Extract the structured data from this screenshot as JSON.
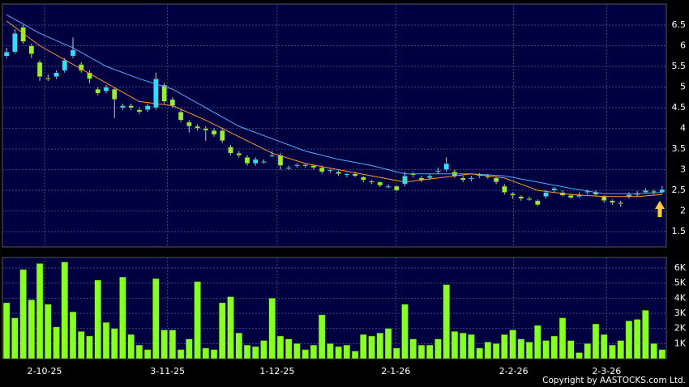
{
  "chart_data": [
    {
      "type": "candlestick",
      "open": [
        5.75,
        5.85,
        6.45,
        6.0,
        5.6,
        5.22,
        5.25,
        5.4,
        5.75,
        5.55,
        5.35,
        4.95,
        4.9,
        4.95,
        4.5,
        4.55,
        4.45,
        4.45,
        4.5,
        5.05,
        4.7,
        4.4,
        4.15,
        4.05,
        4.0,
        3.95,
        3.95,
        3.55,
        3.4,
        3.3,
        3.15,
        3.2,
        3.35,
        3.35,
        3.05,
        3.1,
        3.12,
        3.1,
        3.05,
        2.98,
        2.95,
        2.88,
        2.9,
        2.82,
        2.72,
        2.7,
        2.6,
        2.6,
        2.65,
        2.9,
        2.8,
        2.8,
        2.95,
        3.0,
        2.95,
        2.8,
        2.78,
        2.85,
        2.85,
        2.8,
        2.6,
        2.42,
        2.35,
        2.3,
        2.25,
        2.35,
        2.5,
        2.45,
        2.38,
        2.35,
        2.45,
        2.45,
        2.35,
        2.25,
        2.2,
        2.35,
        2.4,
        2.45,
        2.48,
        2.45
      ],
      "high": [
        5.95,
        6.4,
        6.5,
        6.05,
        5.65,
        5.3,
        5.4,
        5.7,
        6.2,
        5.6,
        5.4,
        5.0,
        5.05,
        5.0,
        4.6,
        4.6,
        4.5,
        4.6,
        5.35,
        5.1,
        4.75,
        4.45,
        4.2,
        4.1,
        4.05,
        4.0,
        4.0,
        3.6,
        3.45,
        3.35,
        3.3,
        3.25,
        3.45,
        3.4,
        3.1,
        3.15,
        3.15,
        3.12,
        3.1,
        3.02,
        2.98,
        2.92,
        2.95,
        2.85,
        2.75,
        2.72,
        2.65,
        2.62,
        2.95,
        2.95,
        2.85,
        2.9,
        3.05,
        3.3,
        3.0,
        2.85,
        2.85,
        2.92,
        2.9,
        2.82,
        2.65,
        2.45,
        2.38,
        2.35,
        2.28,
        2.5,
        2.58,
        2.5,
        2.42,
        2.45,
        2.52,
        2.5,
        2.38,
        2.28,
        2.25,
        2.45,
        2.48,
        2.55,
        2.52,
        2.6
      ],
      "low": [
        5.7,
        5.8,
        6.05,
        5.7,
        5.15,
        5.15,
        5.2,
        5.35,
        5.7,
        5.35,
        5.1,
        4.8,
        4.85,
        4.25,
        4.45,
        4.45,
        4.35,
        4.4,
        4.45,
        4.6,
        4.5,
        4.15,
        3.9,
        3.95,
        3.7,
        3.8,
        3.65,
        3.35,
        3.3,
        3.1,
        3.1,
        3.15,
        3.3,
        3.0,
        3.0,
        3.05,
        3.05,
        3.0,
        2.9,
        2.92,
        2.85,
        2.82,
        2.82,
        2.7,
        2.65,
        2.58,
        2.55,
        2.48,
        2.6,
        2.82,
        2.7,
        2.75,
        2.9,
        2.95,
        2.8,
        2.7,
        2.72,
        2.8,
        2.78,
        2.65,
        2.4,
        2.3,
        2.25,
        2.25,
        2.12,
        2.3,
        2.45,
        2.35,
        2.3,
        2.32,
        2.4,
        2.35,
        2.2,
        2.15,
        2.1,
        2.3,
        2.35,
        2.42,
        2.4,
        2.42
      ],
      "close": [
        5.85,
        6.3,
        6.1,
        5.8,
        5.25,
        5.2,
        5.35,
        5.65,
        5.9,
        5.4,
        5.2,
        4.85,
        5.0,
        4.7,
        4.55,
        4.5,
        4.4,
        4.55,
        5.2,
        4.65,
        4.55,
        4.2,
        4.05,
        4.0,
        3.95,
        3.85,
        3.7,
        3.4,
        3.35,
        3.15,
        3.25,
        3.2,
        3.35,
        3.1,
        3.05,
        3.12,
        3.1,
        3.05,
        2.95,
        3.0,
        2.9,
        2.9,
        2.85,
        2.75,
        2.7,
        2.62,
        2.6,
        2.5,
        2.85,
        2.88,
        2.75,
        2.85,
        2.98,
        3.15,
        2.85,
        2.75,
        2.8,
        2.88,
        2.82,
        2.7,
        2.45,
        2.38,
        2.3,
        2.28,
        2.15,
        2.45,
        2.55,
        2.38,
        2.32,
        2.4,
        2.48,
        2.4,
        2.25,
        2.2,
        2.18,
        2.4,
        2.42,
        2.5,
        2.45,
        2.52
      ],
      "up_color": "#33ddff",
      "down_color": "#99ee33",
      "lines": [
        {
          "color": "#55aaff",
          "x": [
            0,
            4,
            8,
            12,
            16,
            20,
            24,
            28,
            32,
            36,
            40,
            44,
            48,
            52,
            56,
            60,
            64,
            68,
            72,
            76,
            79
          ],
          "values": [
            6.75,
            6.3,
            5.95,
            5.5,
            5.2,
            4.95,
            4.5,
            4.05,
            3.75,
            3.45,
            3.25,
            3.1,
            2.9,
            2.9,
            2.9,
            2.85,
            2.7,
            2.55,
            2.42,
            2.42,
            2.45
          ]
        },
        {
          "color": "#ff9933",
          "x": [
            0,
            4,
            8,
            12,
            16,
            20,
            24,
            28,
            32,
            36,
            40,
            44,
            48,
            52,
            56,
            60,
            64,
            68,
            72,
            76,
            79
          ],
          "values": [
            6.6,
            6.0,
            5.55,
            5.1,
            4.65,
            4.55,
            4.2,
            3.8,
            3.4,
            3.15,
            3.0,
            2.85,
            2.7,
            2.8,
            2.9,
            2.8,
            2.5,
            2.4,
            2.35,
            2.35,
            2.4
          ]
        }
      ],
      "xlim": [
        -0.5,
        79.5
      ],
      "ylim": [
        1.13,
        7.01
      ],
      "yticks": [
        1.5,
        2,
        2.5,
        3,
        3.5,
        4,
        4.5,
        5,
        5.5,
        6,
        6.5
      ],
      "grid": true
    },
    {
      "type": "bar",
      "values": [
        3700,
        2700,
        5900,
        3900,
        6300,
        3600,
        2100,
        6400,
        3100,
        1800,
        1500,
        5200,
        2400,
        2000,
        5400,
        1600,
        900,
        600,
        5300,
        1900,
        1900,
        600,
        1300,
        5100,
        700,
        600,
        3700,
        4100,
        1700,
        900,
        800,
        1200,
        4000,
        1500,
        1300,
        1000,
        600,
        900,
        2900,
        1000,
        800,
        900,
        500,
        1600,
        1500,
        1700,
        2000,
        700,
        3600,
        1300,
        900,
        900,
        1300,
        4900,
        1800,
        1700,
        1600,
        700,
        1100,
        1000,
        1600,
        1900,
        1300,
        1100,
        2200,
        1200,
        1500,
        2700,
        1200,
        400,
        1000,
        2300,
        1600,
        900,
        1200,
        2500,
        2600,
        3200,
        1000,
        600
      ],
      "color": "#88ff22",
      "xlim": [
        -0.5,
        79.5
      ],
      "xticks": [
        {
          "value": 4.58,
          "label": "2-10-25"
        },
        {
          "value": 19.4,
          "label": "3-11-25"
        },
        {
          "value": 32.6,
          "label": "1-12-25"
        },
        {
          "value": 46.9,
          "label": "2-1-26"
        },
        {
          "value": 61.1,
          "label": "2-2-26"
        },
        {
          "value": 72.3,
          "label": "2-3-26"
        }
      ],
      "ylim": [
        0,
        6700
      ],
      "yticks": [
        {
          "value": 1000,
          "label": "1K"
        },
        {
          "value": 2000,
          "label": "2K"
        },
        {
          "value": 3000,
          "label": "3K"
        },
        {
          "value": 4000,
          "label": "4K"
        },
        {
          "value": 5000,
          "label": "5K"
        },
        {
          "value": 6000,
          "label": "6K"
        }
      ],
      "grid": true
    }
  ],
  "copyright": "Copyright by AASTOCKS.com Ltd."
}
